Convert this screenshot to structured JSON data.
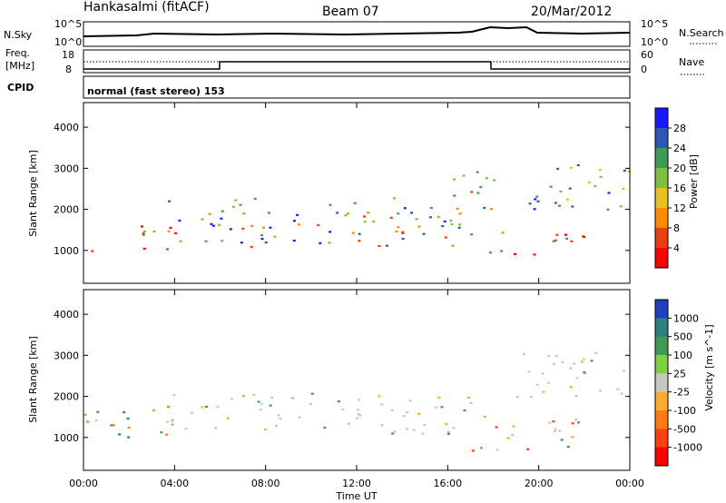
{
  "header": {
    "station": "Hankasalmi (fitACF)",
    "beam": "Beam 07",
    "date": "20/Mar/2012"
  },
  "noise_panel": {
    "left_label": "N.Sky",
    "right_label": "N.Search",
    "left_ticks": [
      "10^5",
      "10^0"
    ],
    "right_ticks": [
      "10^5",
      "10^0"
    ]
  },
  "freq_panel": {
    "left_label_line1": "Freq.",
    "left_label_line2": "[MHz]",
    "left_tick_top": "18",
    "left_tick_bottom": "8",
    "right_label": "Nave",
    "right_tick_top": "60",
    "right_tick_bottom": "0"
  },
  "cpid_panel": {
    "left_label": "CPID",
    "text": "normal (fast stereo) 153"
  },
  "chart_data": [
    {
      "type": "heatmap",
      "title": "",
      "ylabel": "Slant Range [km]",
      "ylim": [
        200,
        4600
      ],
      "yticks": [
        "1000",
        "2000",
        "3000",
        "4000"
      ],
      "colorbar_label": "Power [dB]",
      "colorbar_ticks": [
        "4",
        "8",
        "12",
        "16",
        "20",
        "24",
        "28"
      ],
      "colorbar_colors": [
        "#1a1aff",
        "#2d58b8",
        "#3f9a55",
        "#7fbf3f",
        "#e8c020",
        "#ff8a00",
        "#e84010",
        "#ff0000"
      ],
      "scatter_regions": [
        {
          "t_start": 0.0,
          "t_end": 0.5,
          "r_low": 900,
          "r_high": 1250,
          "level": "high"
        },
        {
          "t_start": 2.2,
          "t_end": 4.0,
          "r_low": 900,
          "r_high": 1700,
          "level": "high"
        },
        {
          "t_start": 2.5,
          "t_end": 16.5,
          "r_low": 1100,
          "r_high": 2300,
          "level": "mid"
        },
        {
          "t_start": 16.0,
          "t_end": 18.0,
          "r_low": 1300,
          "r_high": 3100,
          "level": "mid"
        },
        {
          "t_start": 17.8,
          "t_end": 22.0,
          "r_low": 900,
          "r_high": 1600,
          "level": "high"
        },
        {
          "t_start": 19.5,
          "t_end": 24.0,
          "r_low": 2000,
          "r_high": 3200,
          "level": "low"
        }
      ]
    },
    {
      "type": "heatmap",
      "title": "",
      "ylabel": "Slant Range [km]",
      "ylim": [
        200,
        4600
      ],
      "yticks": [
        "1000",
        "2000",
        "3000",
        "4000"
      ],
      "xticks": [
        "00:00",
        "04:00",
        "08:00",
        "12:00",
        "16:00",
        "20:00",
        "00:00"
      ],
      "xlabel": "Time UT",
      "xlim": [
        0,
        24
      ],
      "colorbar_label": "Velocity [m s^-1]",
      "colorbar_ticks": [
        "1000",
        "500",
        "100",
        "25",
        "-25",
        "-100",
        "-500",
        "-1000"
      ],
      "colorbar_colors": [
        "#2040c0",
        "#2e7f7f",
        "#3f9a55",
        "#7fcf40",
        "#c8c8c0",
        "#ffaa30",
        "#ff7a10",
        "#ff4010",
        "#ff0000"
      ],
      "scatter_regions": [
        {
          "t_start": 0.0,
          "t_end": 4.0,
          "r_low": 900,
          "r_high": 1800,
          "level": "green"
        },
        {
          "t_start": 3.5,
          "t_end": 17.0,
          "r_low": 1100,
          "r_high": 2100,
          "level": "grey"
        },
        {
          "t_start": 17.0,
          "t_end": 22.0,
          "r_low": 700,
          "r_high": 1600,
          "level": "orange"
        },
        {
          "t_start": 19.0,
          "t_end": 24.0,
          "r_low": 2000,
          "r_high": 3200,
          "level": "grey"
        }
      ]
    }
  ]
}
